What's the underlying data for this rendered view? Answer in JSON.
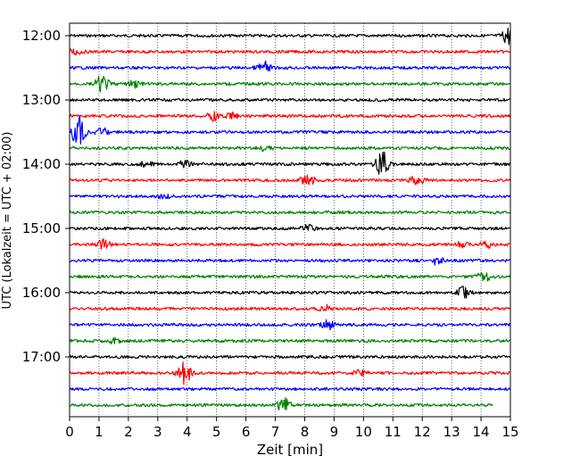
{
  "chart_data": {
    "type": "line",
    "title": "",
    "xlabel": "Zeit  [min]",
    "ylabel": "UTC (Lokalzeit = UTC + 02:00)",
    "xlim": [
      0,
      15
    ],
    "x_ticks": [
      0,
      1,
      2,
      3,
      4,
      5,
      6,
      7,
      8,
      9,
      10,
      11,
      12,
      13,
      14,
      15
    ],
    "y_tick_labels": [
      "12:00",
      "13:00",
      "14:00",
      "15:00",
      "16:00",
      "17:00"
    ],
    "grid": "vertical dotted at each minute",
    "trace_colors": [
      "#000000",
      "#ff0000",
      "#0000ff",
      "#008000"
    ],
    "series": [
      {
        "start": "12:00",
        "color": "#000000",
        "events": [
          {
            "x": 14.95,
            "amp": 1.5
          }
        ]
      },
      {
        "start": "12:15",
        "color": "#ff0000",
        "events": [
          {
            "x": 0.2,
            "amp": 0.5
          }
        ]
      },
      {
        "start": "12:30",
        "color": "#0000ff",
        "events": [
          {
            "x": 6.6,
            "amp": 1.0
          }
        ]
      },
      {
        "start": "12:45",
        "color": "#008000",
        "events": [
          {
            "x": 1.1,
            "amp": 1.3
          },
          {
            "x": 2.2,
            "amp": 0.5
          }
        ]
      },
      {
        "start": "13:00",
        "color": "#000000",
        "events": []
      },
      {
        "start": "13:15",
        "color": "#ff0000",
        "events": [
          {
            "x": 4.9,
            "amp": 0.7
          },
          {
            "x": 5.5,
            "amp": 0.5
          }
        ]
      },
      {
        "start": "13:30",
        "color": "#0000ff",
        "events": [
          {
            "x": 0.3,
            "amp": 2.6
          },
          {
            "x": 1.1,
            "amp": 0.6
          }
        ]
      },
      {
        "start": "13:45",
        "color": "#008000",
        "events": [
          {
            "x": 6.6,
            "amp": 0.4
          }
        ]
      },
      {
        "start": "14:00",
        "color": "#000000",
        "events": [
          {
            "x": 2.6,
            "amp": 0.4
          },
          {
            "x": 3.9,
            "amp": 0.6
          },
          {
            "x": 10.65,
            "amp": 2.2
          }
        ]
      },
      {
        "start": "14:15",
        "color": "#ff0000",
        "events": [
          {
            "x": 8.1,
            "amp": 1.0
          },
          {
            "x": 11.8,
            "amp": 0.7
          }
        ]
      },
      {
        "start": "14:30",
        "color": "#0000ff",
        "events": [
          {
            "x": 3.2,
            "amp": 0.3
          }
        ]
      },
      {
        "start": "14:45",
        "color": "#008000",
        "events": []
      },
      {
        "start": "15:00",
        "color": "#000000",
        "events": [
          {
            "x": 8.1,
            "amp": 0.5
          }
        ]
      },
      {
        "start": "15:15",
        "color": "#ff0000",
        "events": [
          {
            "x": 1.15,
            "amp": 0.8
          },
          {
            "x": 13.4,
            "amp": 0.5
          },
          {
            "x": 14.2,
            "amp": 0.5
          }
        ]
      },
      {
        "start": "15:30",
        "color": "#0000ff",
        "events": [
          {
            "x": 12.5,
            "amp": 0.7
          }
        ]
      },
      {
        "start": "15:45",
        "color": "#008000",
        "events": [
          {
            "x": 14.1,
            "amp": 0.8
          }
        ]
      },
      {
        "start": "16:00",
        "color": "#000000",
        "events": [
          {
            "x": 13.4,
            "amp": 0.8
          }
        ]
      },
      {
        "start": "16:15",
        "color": "#ff0000",
        "events": [
          {
            "x": 8.7,
            "amp": 0.5
          }
        ]
      },
      {
        "start": "16:30",
        "color": "#0000ff",
        "events": [
          {
            "x": 8.8,
            "amp": 0.7
          }
        ]
      },
      {
        "start": "16:45",
        "color": "#008000",
        "events": [
          {
            "x": 1.5,
            "amp": 0.3
          }
        ]
      },
      {
        "start": "17:00",
        "color": "#000000",
        "events": []
      },
      {
        "start": "17:15",
        "color": "#ff0000",
        "events": [
          {
            "x": 3.9,
            "amp": 1.9
          },
          {
            "x": 9.9,
            "amp": 0.4
          }
        ]
      },
      {
        "start": "17:30",
        "color": "#0000ff",
        "events": []
      },
      {
        "start": "17:45",
        "color": "#008000",
        "events": [
          {
            "x": 7.3,
            "amp": 1.3
          }
        ],
        "x_end": 14.4
      }
    ]
  }
}
